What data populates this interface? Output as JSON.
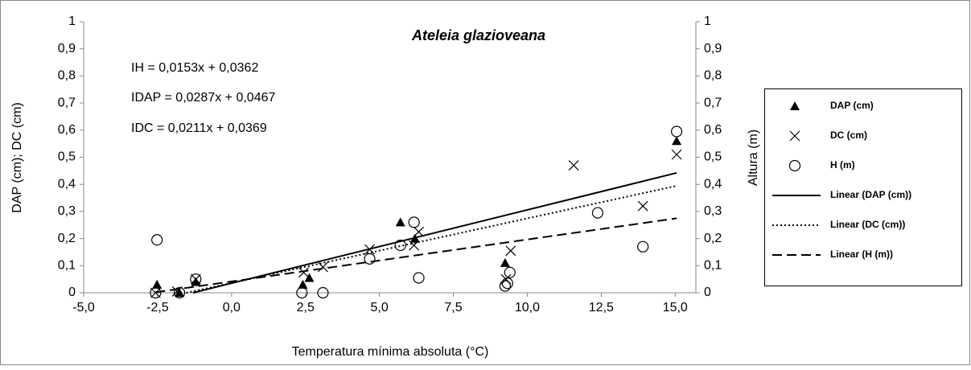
{
  "chart_data": {
    "type": "scatter",
    "title": "Ateleia glazioveana",
    "annotations": [
      "IH = 0,0153x + 0,0362",
      "IDAP = 0,0287x + 0,0467",
      "IDC = 0,0211x + 0,0369"
    ],
    "xlabel": "Temperatura mínima absoluta (°C)",
    "ylabel": "DAP (cm); DC (cm)",
    "y2label": "Altura (m)",
    "xlim": [
      -5,
      15.7
    ],
    "xticks": [
      {
        "value": -5,
        "label": "-5,0"
      },
      {
        "value": -2.5,
        "label": "-2,5"
      },
      {
        "value": 0,
        "label": "0,0"
      },
      {
        "value": 2.5,
        "label": "2,5"
      },
      {
        "value": 5,
        "label": "5,0"
      },
      {
        "value": 7.5,
        "label": "7,5"
      },
      {
        "value": 10,
        "label": "10,0"
      },
      {
        "value": 12.5,
        "label": "12,5"
      },
      {
        "value": 15,
        "label": "15,0"
      }
    ],
    "ylim": [
      0,
      1
    ],
    "yticks": [
      0,
      {
        "value": 0.1,
        "label": "0,1"
      },
      {
        "value": 0.2,
        "label": "0,2"
      },
      {
        "value": 0.3,
        "label": "0,3"
      },
      {
        "value": 0.4,
        "label": "0,4"
      },
      {
        "value": 0.5,
        "label": "0,5"
      },
      {
        "value": 0.6,
        "label": "0,6"
      },
      {
        "value": 0.7,
        "label": "0,7"
      },
      {
        "value": 0.8,
        "label": "0,8"
      },
      {
        "value": 0.9,
        "label": "0,9"
      },
      1
    ],
    "y2lim": [
      0,
      1
    ],
    "y2ticks": [
      0,
      {
        "value": 0.1,
        "label": "0,1"
      },
      {
        "value": 0.2,
        "label": "0,2"
      },
      {
        "value": 0.3,
        "label": "0,3"
      },
      {
        "value": 0.4,
        "label": "0,4"
      },
      {
        "value": 0.5,
        "label": "0,5"
      },
      {
        "value": 0.6,
        "label": "0,6"
      },
      {
        "value": 0.7,
        "label": "0,7"
      },
      {
        "value": 0.8,
        "label": "0,8"
      },
      {
        "value": 0.9,
        "label": "0,9"
      },
      1
    ],
    "legend": "right",
    "series": [
      {
        "name": "DAP (cm)",
        "color": "#000000",
        "marker": "triangle",
        "trendline": {
          "name": "Linear (DAP (cm))",
          "dash": "solid"
        },
        "x": [
          -2.52,
          -1.76,
          -1.21,
          2.41,
          2.63,
          5.71,
          6.2,
          9.25,
          15.05
        ],
        "values": [
          0.03,
          0,
          0.04,
          0.03,
          0.055,
          0.26,
          0.2,
          0.11,
          0.56
        ]
      },
      {
        "name": "DC (cm)",
        "color": "#000000",
        "marker": "x",
        "trendline": {
          "name": "Linear (DC (cm))",
          "dash": "dotted"
        },
        "x": [
          -2.57,
          -1.84,
          -1.21,
          2.44,
          3.09,
          4.67,
          6.17,
          6.33,
          9.28,
          9.44,
          11.57,
          13.91,
          15.05
        ],
        "values": [
          0,
          0.005,
          0.05,
          0.075,
          0.095,
          0.16,
          0.175,
          0.225,
          0.05,
          0.155,
          0.47,
          0.32,
          0.51
        ]
      },
      {
        "name": "H (m)",
        "color": "#000000",
        "marker": "circle",
        "axis": "y2",
        "trendline": {
          "name": "Linear (H (m))",
          "dash": "dashed"
        },
        "x": [
          -2.52,
          -2.57,
          -1.76,
          -1.21,
          2.38,
          3.09,
          4.67,
          5.71,
          6.17,
          6.33,
          9.25,
          9.33,
          9.41,
          12.38,
          13.91,
          15.05
        ],
        "values": [
          0.195,
          0,
          0,
          0.05,
          0,
          0,
          0.125,
          0.175,
          0.26,
          0.055,
          0.025,
          0.035,
          0.075,
          0.295,
          0.17,
          0.595
        ]
      }
    ]
  }
}
